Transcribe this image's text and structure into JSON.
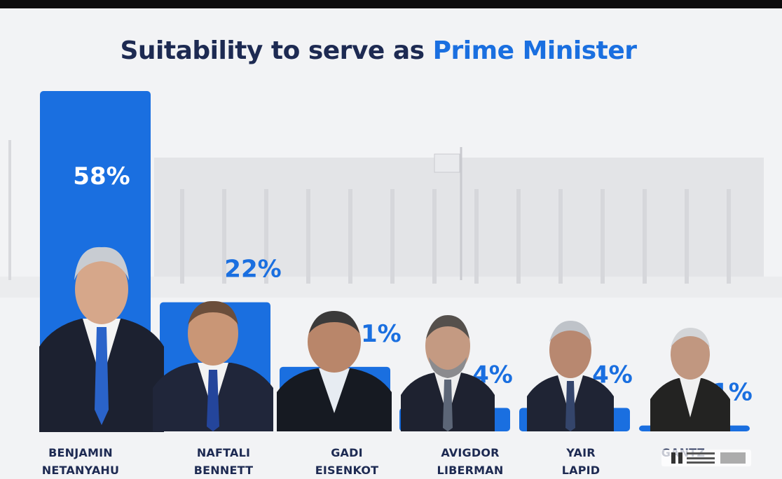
{
  "title_main": "Suitability to serve as",
  "title_accent": "Prime Minister",
  "colors": {
    "bar": "#1a6fe0",
    "label": "#1a6fe0",
    "label_inside": "#ffffff",
    "title_dark": "#1d2a52"
  },
  "chart_data": {
    "type": "bar",
    "title": "Suitability to serve as Prime Minister",
    "categories": [
      "BENJAMIN NETANYAHU",
      "NAFTALI BENNETT",
      "GADI EISENKOT",
      "AVIGDOR LIBERMAN",
      "YAIR LAPID",
      "GANTZ"
    ],
    "values": [
      58,
      22,
      11,
      4,
      4,
      1
    ],
    "value_labels": [
      "58%",
      "22%",
      "11%",
      "4%",
      "4%",
      "1%"
    ],
    "unit": "%",
    "ylim": [
      0,
      58
    ],
    "grid": false,
    "legend": "none"
  },
  "names": [
    {
      "line1": "BENJAMIN",
      "line2": "NETANYAHU"
    },
    {
      "line1": "NAFTALI",
      "line2": "BENNETT"
    },
    {
      "line1": "GADI",
      "line2": "EISENKOT"
    },
    {
      "line1": "AVIGDOR",
      "line2": "LIBERMAN"
    },
    {
      "line1": "YAIR",
      "line2": "LAPID"
    },
    {
      "line1": "",
      "line2": "GANTZ"
    }
  ]
}
